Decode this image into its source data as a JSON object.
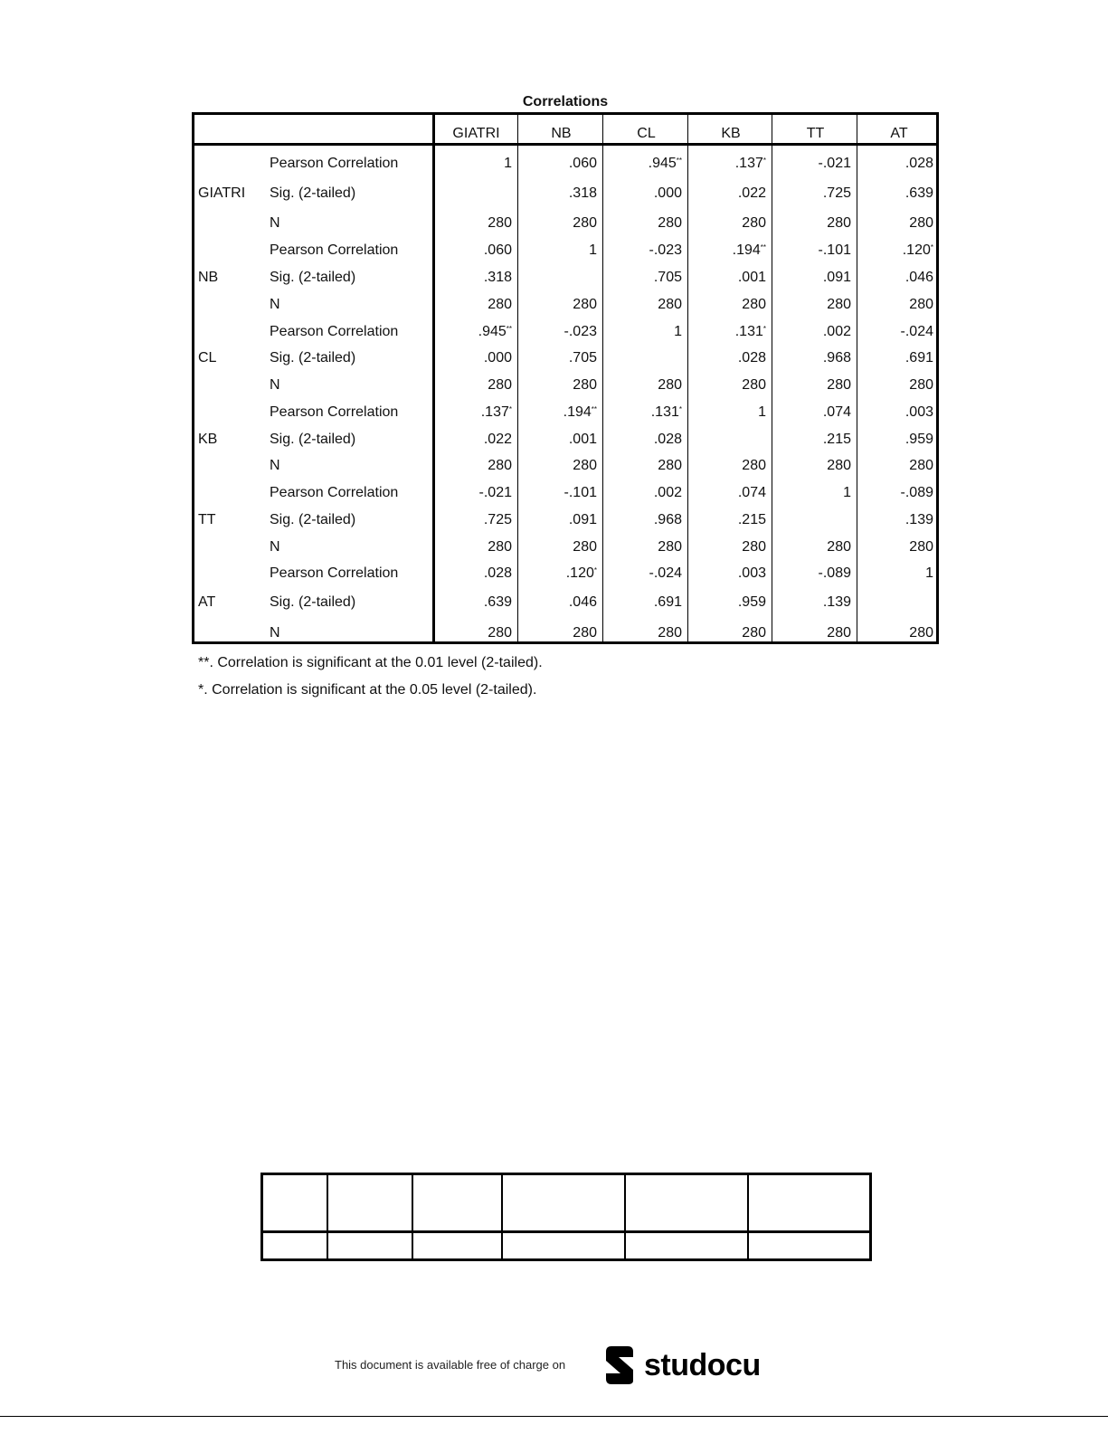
{
  "table": {
    "title": "Correlations",
    "columns": [
      "GIATRI",
      "NB",
      "CL",
      "KB",
      "TT",
      "AT"
    ],
    "stat_labels": [
      "Pearson Correlation",
      "Sig. (2-tailed)",
      "N"
    ],
    "rows": [
      {
        "variable": "GIATRI",
        "pearson": [
          "1",
          ".060",
          ".945**",
          ".137*",
          "-.021",
          ".028"
        ],
        "sig": [
          "",
          ".318",
          ".000",
          ".022",
          ".725",
          ".639"
        ],
        "n": [
          "280",
          "280",
          "280",
          "280",
          "280",
          "280"
        ]
      },
      {
        "variable": "NB",
        "pearson": [
          ".060",
          "1",
          "-.023",
          ".194**",
          "-.101",
          ".120*"
        ],
        "sig": [
          ".318",
          "",
          ".705",
          ".001",
          ".091",
          ".046"
        ],
        "n": [
          "280",
          "280",
          "280",
          "280",
          "280",
          "280"
        ]
      },
      {
        "variable": "CL",
        "pearson": [
          ".945**",
          "-.023",
          "1",
          ".131*",
          ".002",
          "-.024"
        ],
        "sig": [
          ".000",
          ".705",
          "",
          ".028",
          ".968",
          ".691"
        ],
        "n": [
          "280",
          "280",
          "280",
          "280",
          "280",
          "280"
        ]
      },
      {
        "variable": "KB",
        "pearson": [
          ".137*",
          ".194**",
          ".131*",
          "1",
          ".074",
          ".003"
        ],
        "sig": [
          ".022",
          ".001",
          ".028",
          "",
          ".215",
          ".959"
        ],
        "n": [
          "280",
          "280",
          "280",
          "280",
          "280",
          "280"
        ]
      },
      {
        "variable": "TT",
        "pearson": [
          "-.021",
          "-.101",
          ".002",
          ".074",
          "1",
          "-.089"
        ],
        "sig": [
          ".725",
          ".091",
          ".968",
          ".215",
          "",
          ".139"
        ],
        "n": [
          "280",
          "280",
          "280",
          "280",
          "280",
          "280"
        ]
      },
      {
        "variable": "AT",
        "pearson": [
          ".028",
          ".120*",
          "-.024",
          ".003",
          "-.089",
          "1"
        ],
        "sig": [
          ".639",
          ".046",
          ".691",
          ".959",
          ".139",
          ""
        ],
        "n": [
          "280",
          "280",
          "280",
          "280",
          "280",
          "280"
        ]
      }
    ],
    "footnotes": [
      "**. Correlation is significant at the 0.01 level (2-tailed).",
      "*. Correlation is significant at the 0.05 level (2-tailed)."
    ]
  },
  "footer": {
    "promo_text": "This document is available free of charge on",
    "brand": "studocu"
  }
}
